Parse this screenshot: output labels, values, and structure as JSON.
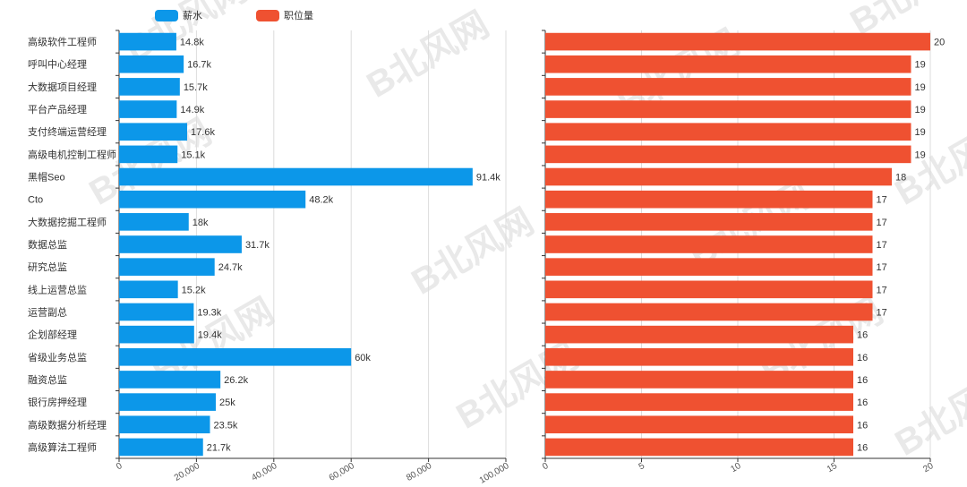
{
  "chart_data": {
    "type": "bar",
    "orientation": "horizontal",
    "legend": [
      {
        "name": "薪水",
        "color": "#0c97e9"
      },
      {
        "name": "职位量",
        "color": "#ef5131"
      }
    ],
    "categories": [
      "高级软件工程师",
      "呼叫中心经理",
      "大数据项目经理",
      "平台产品经理",
      "支付终端运营经理",
      "高级电机控制工程师",
      "黑帽Seo",
      "Cto",
      "大数据挖掘工程师",
      "数据总监",
      "研究总监",
      "线上运营总监",
      "运营副总",
      "企划部经理",
      "省级业务总监",
      "融资总监",
      "银行房押经理",
      "高级数据分析经理",
      "高级算法工程师"
    ],
    "series": [
      {
        "name": "薪水",
        "color": "#0c97e9",
        "values": [
          14800,
          16700,
          15700,
          14900,
          17600,
          15100,
          91400,
          48200,
          18000,
          31700,
          24700,
          15200,
          19300,
          19400,
          60000,
          26200,
          25000,
          23500,
          21700
        ],
        "labels": [
          "14.8k",
          "16.7k",
          "15.7k",
          "14.9k",
          "17.6k",
          "15.1k",
          "91.4k",
          "48.2k",
          "18k",
          "31.7k",
          "24.7k",
          "15.2k",
          "19.3k",
          "19.4k",
          "60k",
          "26.2k",
          "25k",
          "23.5k",
          "21.7k"
        ],
        "xlim": [
          0,
          100000
        ],
        "ticks": [
          "0",
          "20,000",
          "40,000",
          "60,000",
          "80,000",
          "100,000"
        ]
      },
      {
        "name": "职位量",
        "color": "#ef5131",
        "values": [
          20,
          19,
          19,
          19,
          19,
          19,
          18,
          17,
          17,
          17,
          17,
          17,
          17,
          16,
          16,
          16,
          16,
          16,
          16
        ],
        "labels": [
          "20",
          "19",
          "19",
          "19",
          "19",
          "19",
          "18",
          "17",
          "17",
          "17",
          "17",
          "17",
          "17",
          "16",
          "16",
          "16",
          "16",
          "16",
          "16"
        ],
        "xlim": [
          0,
          20
        ],
        "ticks": [
          "0",
          "5",
          "10",
          "15",
          "20"
        ]
      }
    ],
    "grid": true,
    "legend_position": "top-left",
    "watermark": "北风网 IBEIFENG.COM"
  }
}
